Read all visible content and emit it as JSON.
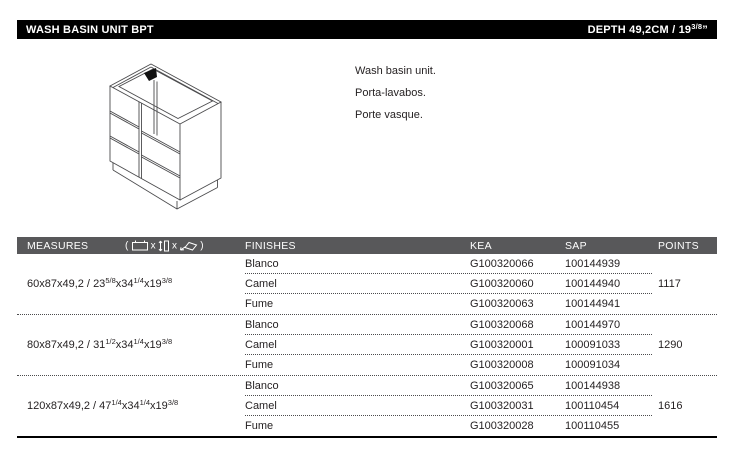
{
  "colors": {
    "title_bar": "#000000",
    "table_header": "#58585a",
    "text": "#231f20",
    "line_art": "#4b4b4d"
  },
  "titlebar": {
    "title": "WASH BASIN UNIT BPT",
    "depth": {
      "prefix": "DEPTH 49,2CM / 19",
      "fraction": "3/8",
      "suffix": "”"
    }
  },
  "description": {
    "lines": [
      "Wash basin unit.",
      "Porta-lavabos.",
      "Porte vasque."
    ]
  },
  "drawing": {
    "name": "wash-basin-unit-isometric-drawing"
  },
  "table": {
    "header": {
      "measures": "MEASURES",
      "finishes": "FINISHES",
      "kea": "KEA",
      "sap": "SAP",
      "points": "POINTS",
      "icons": {
        "open": "(",
        "sep": "x",
        "close": ")",
        "names": [
          "width-icon",
          "height-icon",
          "depth-icon"
        ]
      }
    },
    "groups": [
      {
        "measure": {
          "metric": "60x87x49,2",
          "imperial": [
            {
              "value": "23",
              "fraction": "5/8"
            },
            {
              "value": "34",
              "fraction": "1/4"
            },
            {
              "value": "19",
              "fraction": "3/8"
            }
          ]
        },
        "points": "1117",
        "rows": [
          {
            "finish": "Blanco",
            "kea": "G100320066",
            "sap": "100144939"
          },
          {
            "finish": "Camel",
            "kea": "G100320060",
            "sap": "100144940"
          },
          {
            "finish": "Fume",
            "kea": "G100320063",
            "sap": "100144941"
          }
        ]
      },
      {
        "measure": {
          "metric": "80x87x49,2",
          "imperial": [
            {
              "value": "31",
              "fraction": "1/2"
            },
            {
              "value": "34",
              "fraction": "1/4"
            },
            {
              "value": "19",
              "fraction": "3/8"
            }
          ]
        },
        "points": "1290",
        "rows": [
          {
            "finish": "Blanco",
            "kea": "G100320068",
            "sap": "100144970"
          },
          {
            "finish": "Camel",
            "kea": "G100320001",
            "sap": "100091033"
          },
          {
            "finish": "Fume",
            "kea": "G100320008",
            "sap": "100091034"
          }
        ]
      },
      {
        "measure": {
          "metric": "120x87x49,2",
          "imperial": [
            {
              "value": "47",
              "fraction": "1/4"
            },
            {
              "value": "34",
              "fraction": "1/4"
            },
            {
              "value": "19",
              "fraction": "3/8"
            }
          ]
        },
        "points": "1616",
        "rows": [
          {
            "finish": "Blanco",
            "kea": "G100320065",
            "sap": "100144938"
          },
          {
            "finish": "Camel",
            "kea": "G100320031",
            "sap": "100110454"
          },
          {
            "finish": "Fume",
            "kea": "G100320028",
            "sap": "100110455"
          }
        ]
      }
    ]
  }
}
